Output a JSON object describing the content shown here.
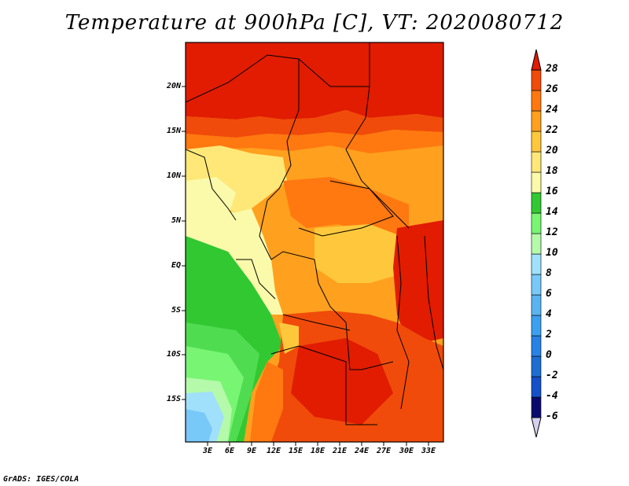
{
  "title": "Temperature at 900hPa [C], VT: 2020080712",
  "credit": "GrADS: IGES/COLA",
  "map": {
    "lat_labels": [
      "20N",
      "15N",
      "10N",
      "5N",
      "EQ",
      "5S",
      "10S",
      "15S"
    ],
    "lon_labels": [
      "3E",
      "6E",
      "9E",
      "12E",
      "15E",
      "18E",
      "21E",
      "24E",
      "27E",
      "30E",
      "33E"
    ]
  },
  "colorbar": {
    "levels": [
      "28",
      "26",
      "24",
      "22",
      "20",
      "18",
      "16",
      "14",
      "12",
      "10",
      "8",
      "6",
      "4",
      "2",
      "0",
      "-2",
      "-4",
      "-6"
    ],
    "colors": [
      "#0a0a6e",
      "#1450c8",
      "#1e6ed2",
      "#2882e6",
      "#3ca0f0",
      "#5ab4f0",
      "#78c8f8",
      "#a0e0fa",
      "#b4faaa",
      "#78f573",
      "#50dc50",
      "#32c832",
      "#fafaaa",
      "#ffe878",
      "#ffc83c",
      "#ffa01e",
      "#ff7810",
      "#f04b0a",
      "#e11c00",
      "#c80000"
    ]
  }
}
